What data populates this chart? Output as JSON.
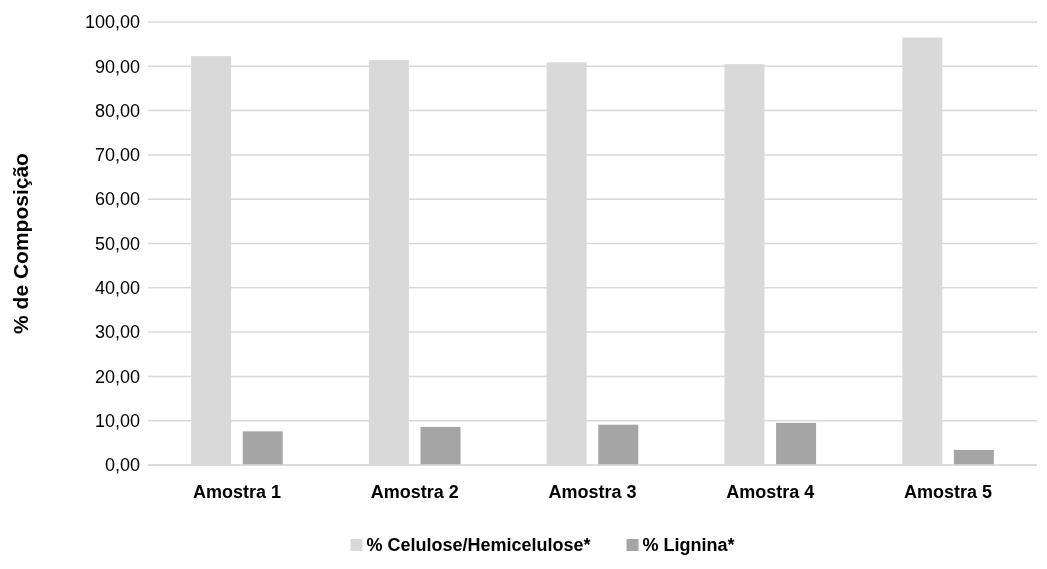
{
  "chart_data": {
    "type": "bar",
    "ylabel": "% de Composição",
    "categories": [
      "Amostra 1",
      "Amostra 2",
      "Amostra 3",
      "Amostra 4",
      "Amostra 5"
    ],
    "series": [
      {
        "name": "% Celulose/Hemicelulose*",
        "color": "#d9d9d9",
        "values": [
          92.3,
          91.4,
          90.9,
          90.5,
          96.5
        ]
      },
      {
        "name": "% Lignina*",
        "color": "#a5a5a5",
        "values": [
          7.6,
          8.6,
          9.1,
          9.5,
          3.4
        ]
      }
    ],
    "ylim": [
      0,
      100
    ],
    "yticks": [
      {
        "value": 0,
        "label": "0,00"
      },
      {
        "value": 10,
        "label": "10,00"
      },
      {
        "value": 20,
        "label": "20,00"
      },
      {
        "value": 30,
        "label": "30,00"
      },
      {
        "value": 40,
        "label": "40,00"
      },
      {
        "value": 50,
        "label": "50,00"
      },
      {
        "value": 60,
        "label": "60,00"
      },
      {
        "value": 70,
        "label": "70,00"
      },
      {
        "value": 80,
        "label": "80,00"
      },
      {
        "value": 90,
        "label": "90,00"
      },
      {
        "value": 100,
        "label": "100,00"
      }
    ],
    "grid": "y",
    "legend": "bottom"
  }
}
